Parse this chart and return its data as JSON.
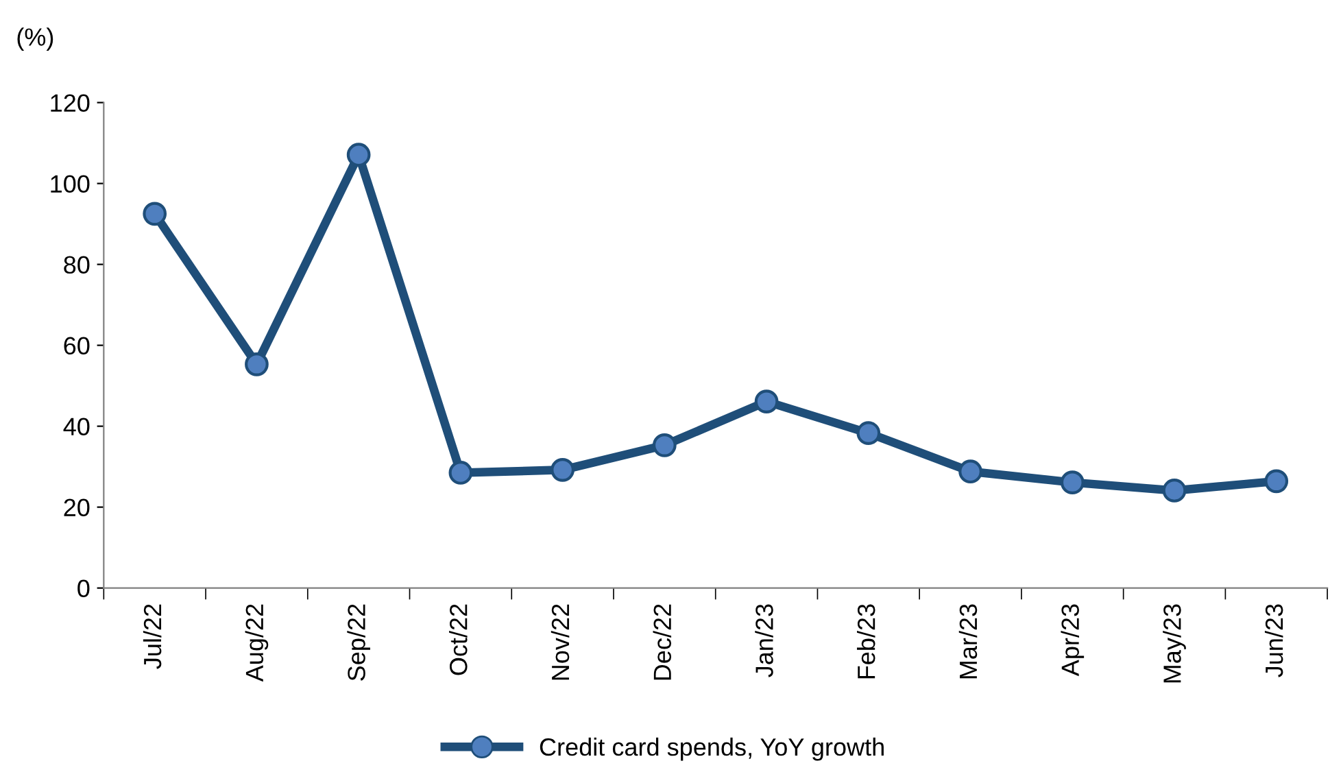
{
  "chart_data": {
    "type": "line",
    "ylabel": "(%)",
    "categories": [
      "Jul/22",
      "Aug/22",
      "Sep/22",
      "Oct/22",
      "Nov/22",
      "Dec/22",
      "Jan/23",
      "Feb/23",
      "Mar/23",
      "Apr/23",
      "May/23",
      "Jun/23"
    ],
    "series": [
      {
        "name": "Credit card spends, YoY growth",
        "color": "#1f4e79",
        "values": [
          92.5,
          55.3,
          107.1,
          28.5,
          29.2,
          35.3,
          46.1,
          38.3,
          28.8,
          26.1,
          24.1,
          26.4
        ]
      }
    ],
    "ylim": [
      0,
      120
    ],
    "yticks": [
      0,
      20,
      40,
      60,
      80,
      100,
      120
    ],
    "grid": false,
    "legend": "bottom",
    "marker": "circle",
    "line_style": "solid"
  }
}
